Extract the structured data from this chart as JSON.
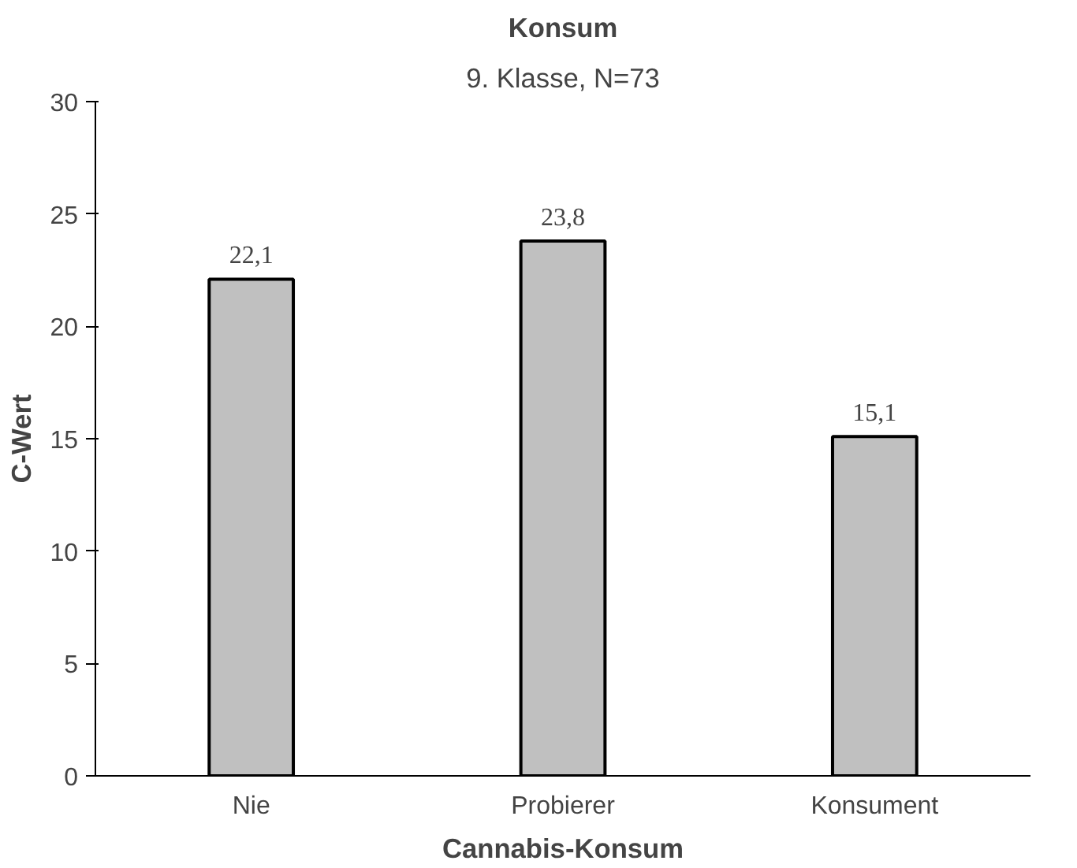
{
  "chart_data": {
    "type": "bar",
    "title": "Konsum",
    "subtitle": "9. Klasse, N=73",
    "xlabel": "Cannabis-Konsum",
    "ylabel": "C-Wert",
    "categories": [
      "Nie",
      "Probierer",
      "Konsument"
    ],
    "values": [
      22.1,
      23.8,
      15.1
    ],
    "value_labels": [
      "22,1",
      "23,8",
      "15,1"
    ],
    "color": "#c0c0c0",
    "ylim": [
      0,
      30
    ],
    "yticks": [
      0,
      5,
      10,
      15,
      20,
      25,
      30
    ],
    "grid": false
  }
}
